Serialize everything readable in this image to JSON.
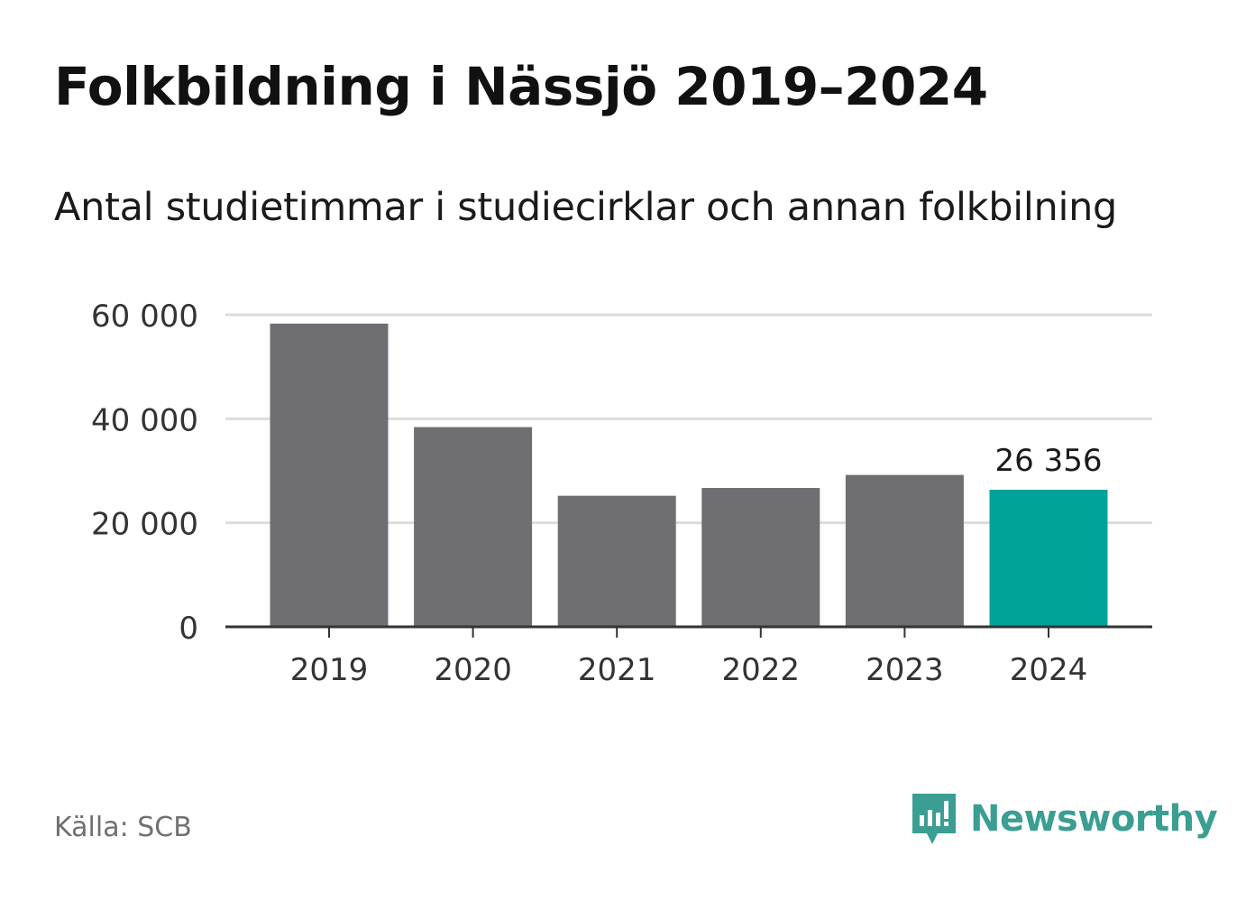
{
  "header": {
    "title": "Folkbildning i Nässjö 2019–2024",
    "subtitle": "Antal studietimmar i studiecirklar och annan folkbilning"
  },
  "footer": {
    "source": "Källa: SCB",
    "brand": "Newsworthy",
    "brand_icon": "newsworthy-logo-icon",
    "brand_color": "#3a9e93"
  },
  "chart_data": {
    "type": "bar",
    "categories": [
      "2019",
      "2020",
      "2021",
      "2022",
      "2023",
      "2024"
    ],
    "values": [
      58300,
      38400,
      25200,
      26700,
      29200,
      26356
    ],
    "ylim": [
      0,
      60000
    ],
    "yticks": [
      0,
      20000,
      40000,
      60000
    ],
    "ytick_labels": [
      "0",
      "20 000",
      "40 000",
      "60 000"
    ],
    "grid": true,
    "bar_color": "#6f6e73",
    "highlight_color": "#00a398",
    "highlight_index": 5,
    "highlight_label": "26 356"
  }
}
